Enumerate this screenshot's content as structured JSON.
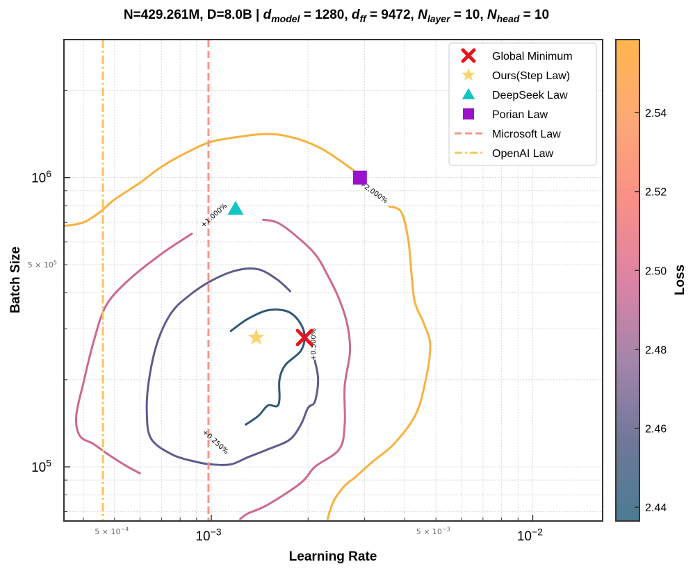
{
  "chart_data": {
    "type": "contour",
    "title_parts": [
      {
        "t": "N=429.261M, D=8.0B | "
      },
      {
        "t": "d"
      },
      {
        "t": "model",
        "sub": true
      },
      {
        "t": " = 1280, "
      },
      {
        "t": "d"
      },
      {
        "t": "ff",
        "sub": true
      },
      {
        "t": " = 9472, "
      },
      {
        "t": "N"
      },
      {
        "t": "layer",
        "sub": true
      },
      {
        "t": " = 10, "
      },
      {
        "t": "N"
      },
      {
        "t": "head",
        "sub": true
      },
      {
        "t": " = 10"
      }
    ],
    "xlabel": "Learning Rate",
    "ylabel": "Batch Size",
    "xscale": "log",
    "yscale": "log",
    "xlim": [
      0.000348,
      0.0165
    ],
    "ylim": [
      65000,
      3000000
    ],
    "x_major_ticks": [
      {
        "value": 0.001,
        "base": "10",
        "exp": "−3"
      },
      {
        "value": 0.01,
        "base": "10",
        "exp": "−2"
      }
    ],
    "x_minor_labeled": [
      {
        "value": 0.0005,
        "base": "5 × 10",
        "exp": "−4"
      },
      {
        "value": 0.005,
        "base": "5 × 10",
        "exp": "−3"
      }
    ],
    "y_major_ticks": [
      {
        "value": 100000,
        "base": "10",
        "exp": "5"
      },
      {
        "value": 1000000,
        "base": "10",
        "exp": "6"
      }
    ],
    "y_minor_labeled": [
      {
        "value": 500000,
        "base": "5 × 10",
        "exp": "5"
      }
    ],
    "grid": true,
    "legend_position": "top-right",
    "legend": [
      {
        "label": "Global Minimum",
        "marker": "x",
        "color": "#e8141c"
      },
      {
        "label": "Ours(Step Law)",
        "marker": "star",
        "color": "#fad56b"
      },
      {
        "label": "DeepSeek Law",
        "marker": "triangle",
        "color": "#13c4c4"
      },
      {
        "label": "Porian Law",
        "marker": "square",
        "color": "#9b12cc"
      },
      {
        "label": "Microsoft Law",
        "marker": "dashed-line",
        "color": "#f7968a"
      },
      {
        "label": "OpenAI Law",
        "marker": "dashdot-line",
        "color": "#fac45c"
      }
    ],
    "points": [
      {
        "name": "Global Minimum",
        "x": 0.00195,
        "y": 280000,
        "marker": "x",
        "color": "#e8141c"
      },
      {
        "name": "Ours(Step Law)",
        "x": 0.00138,
        "y": 280000,
        "marker": "star",
        "color": "#fad56b"
      },
      {
        "name": "DeepSeek Law",
        "x": 0.00119,
        "y": 780000,
        "marker": "triangle",
        "color": "#13c4c4"
      },
      {
        "name": "Porian Law",
        "x": 0.0029,
        "y": 1000000,
        "marker": "square",
        "color": "#9b12cc"
      }
    ],
    "vlines": [
      {
        "name": "Microsoft Law",
        "x": 0.00098,
        "style": "dashed",
        "color": "#f7968a"
      },
      {
        "name": "OpenAI Law",
        "x": 0.00046,
        "style": "dashdot",
        "color": "#fac45c"
      }
    ],
    "contours": [
      {
        "level": "+0.500%",
        "color": "#2e5878",
        "segments": [
          [
            [
              0.00115,
              295000
            ],
            [
              0.0013,
              325000
            ],
            [
              0.0015,
              348000
            ],
            [
              0.00172,
              345000
            ],
            [
              0.00187,
              320000
            ],
            [
              0.00195,
              285000
            ],
            [
              0.0019,
              252000
            ],
            [
              0.0017,
              225000
            ],
            [
              0.00163,
              200000
            ],
            [
              0.00163,
              172000
            ],
            [
              0.0016,
              162000
            ],
            [
              0.0015,
              163000
            ],
            [
              0.0014,
              150000
            ],
            [
              0.00128,
              140000
            ]
          ]
        ]
      },
      {
        "level": "+0.250%",
        "color": "#5c5c8e",
        "segments": [
          [
            [
              0.00176,
              405000
            ],
            [
              0.0016,
              445000
            ],
            [
              0.0014,
              482000
            ],
            [
              0.0012,
              478000
            ],
            [
              0.001,
              440000
            ],
            [
              0.00085,
              390000
            ],
            [
              0.00075,
              340000
            ],
            [
              0.00068,
              270000
            ],
            [
              0.00064,
              200000
            ],
            [
              0.00063,
              155000
            ],
            [
              0.00065,
              125000
            ],
            [
              0.00076,
              110000
            ],
            [
              0.0009,
              104000
            ],
            [
              0.001,
              102000
            ],
            [
              0.00115,
              102000
            ],
            [
              0.0013,
              108000
            ],
            [
              0.0015,
              115000
            ],
            [
              0.00175,
              124000
            ],
            [
              0.0019,
              140000
            ],
            [
              0.002,
              160000
            ],
            [
              0.0021,
              168000
            ],
            [
              0.00215,
              200000
            ],
            [
              0.0021,
              233000
            ]
          ]
        ]
      },
      {
        "level": "+1.000%",
        "color": "#cc6892",
        "segments": [
          [
            [
              0.00087,
              640000
            ],
            [
              0.0007,
              545000
            ],
            [
              0.00055,
              440000
            ],
            [
              0.00047,
              360000
            ],
            [
              0.00043,
              270000
            ],
            [
              0.0004,
              195000
            ],
            [
              0.00038,
              150000
            ],
            [
              0.00039,
              128000
            ],
            [
              0.00043,
              120000
            ],
            [
              0.00048,
              110000
            ],
            [
              0.00055,
              100000
            ],
            [
              0.0006,
              95000
            ]
          ],
          [
            [
              0.00145,
              715000
            ],
            [
              0.0016,
              700000
            ],
            [
              0.0018,
              640000
            ],
            [
              0.0021,
              545000
            ],
            [
              0.0023,
              460000
            ],
            [
              0.0025,
              380000
            ],
            [
              0.00265,
              310000
            ],
            [
              0.0027,
              250000
            ],
            [
              0.0026,
              190000
            ],
            [
              0.0026,
              140000
            ],
            [
              0.0025,
              115000
            ],
            [
              0.0021,
              100000
            ],
            [
              0.0019,
              88000
            ],
            [
              0.0015,
              74000
            ],
            [
              0.0013,
              69000
            ],
            [
              0.00123,
              66000
            ]
          ]
        ]
      },
      {
        "level": "+2.000%",
        "color": "#f9b13e",
        "segments": [
          [
            [
              0.000348,
              680000
            ],
            [
              0.0004,
              700000
            ],
            [
              0.00045,
              760000
            ],
            [
              0.0005,
              840000
            ],
            [
              0.0006,
              960000
            ],
            [
              0.0007,
              1090000
            ],
            [
              0.00085,
              1230000
            ],
            [
              0.001,
              1330000
            ],
            [
              0.0012,
              1380000
            ],
            [
              0.0014,
              1410000
            ],
            [
              0.0016,
              1410000
            ],
            [
              0.0019,
              1350000
            ],
            [
              0.0022,
              1260000
            ],
            [
              0.0025,
              1150000
            ],
            [
              0.0028,
              1050000
            ]
          ],
          [
            [
              0.00358,
              795000
            ],
            [
              0.0039,
              760000
            ],
            [
              0.0041,
              610000
            ],
            [
              0.0042,
              460000
            ],
            [
              0.0043,
              370000
            ],
            [
              0.0046,
              310000
            ],
            [
              0.0048,
              260000
            ],
            [
              0.0046,
              190000
            ],
            [
              0.0043,
              150000
            ],
            [
              0.0037,
              120000
            ],
            [
              0.0032,
              105000
            ],
            [
              0.0028,
              92000
            ],
            [
              0.0026,
              86000
            ],
            [
              0.0024,
              76000
            ],
            [
              0.0023,
              66000
            ]
          ]
        ]
      }
    ],
    "contour_labels": [
      {
        "text": "+1.000%",
        "x": 0.00102,
        "y": 740000,
        "angle": -42
      },
      {
        "text": "+0.500%",
        "x": 0.00208,
        "y": 265000,
        "angle": -90
      },
      {
        "text": "+0.250%",
        "x": 0.00103,
        "y": 122000,
        "angle": 42
      },
      {
        "text": "+2.000%",
        "x": 0.0032,
        "y": 890000,
        "angle": 35
      }
    ],
    "colorbar": {
      "label": "Loss",
      "min": 2.4365,
      "max": 2.5585,
      "ticks": [
        2.44,
        2.46,
        2.48,
        2.5,
        2.52,
        2.54
      ],
      "tick_labels": [
        "2.44",
        "2.46",
        "2.48",
        "2.50",
        "2.52",
        "2.54"
      ],
      "colors": [
        "#4a7c93",
        "#70789a",
        "#a485aa",
        "#dd83a5",
        "#f98f86",
        "#fda876",
        "#ffb64c"
      ]
    }
  }
}
